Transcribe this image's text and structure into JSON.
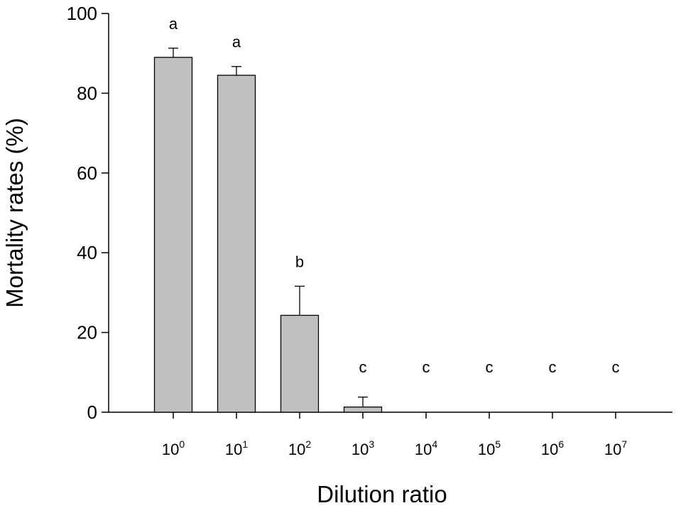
{
  "chart_data": {
    "type": "bar",
    "title": "",
    "xlabel": "Dilution ratio",
    "ylabel": "Mortality rates (%)",
    "ylim": [
      0,
      100
    ],
    "yticks": [
      0,
      20,
      40,
      60,
      80,
      100
    ],
    "categories": [
      {
        "base": "10",
        "exp": "0"
      },
      {
        "base": "10",
        "exp": "1"
      },
      {
        "base": "10",
        "exp": "2"
      },
      {
        "base": "10",
        "exp": "3"
      },
      {
        "base": "10",
        "exp": "4"
      },
      {
        "base": "10",
        "exp": "5"
      },
      {
        "base": "10",
        "exp": "6"
      },
      {
        "base": "10",
        "exp": "7"
      }
    ],
    "values": [
      89.0,
      84.5,
      24.3,
      1.3,
      0,
      0,
      0,
      0
    ],
    "errors": [
      2.3,
      2.2,
      7.3,
      2.5,
      0,
      0,
      0,
      0
    ],
    "significance_letters": [
      "a",
      "a",
      "b",
      "c",
      "c",
      "c",
      "c",
      "c"
    ],
    "bar_color": "#c0c0c0",
    "bar_edge_color": "#000000",
    "grid": false
  }
}
